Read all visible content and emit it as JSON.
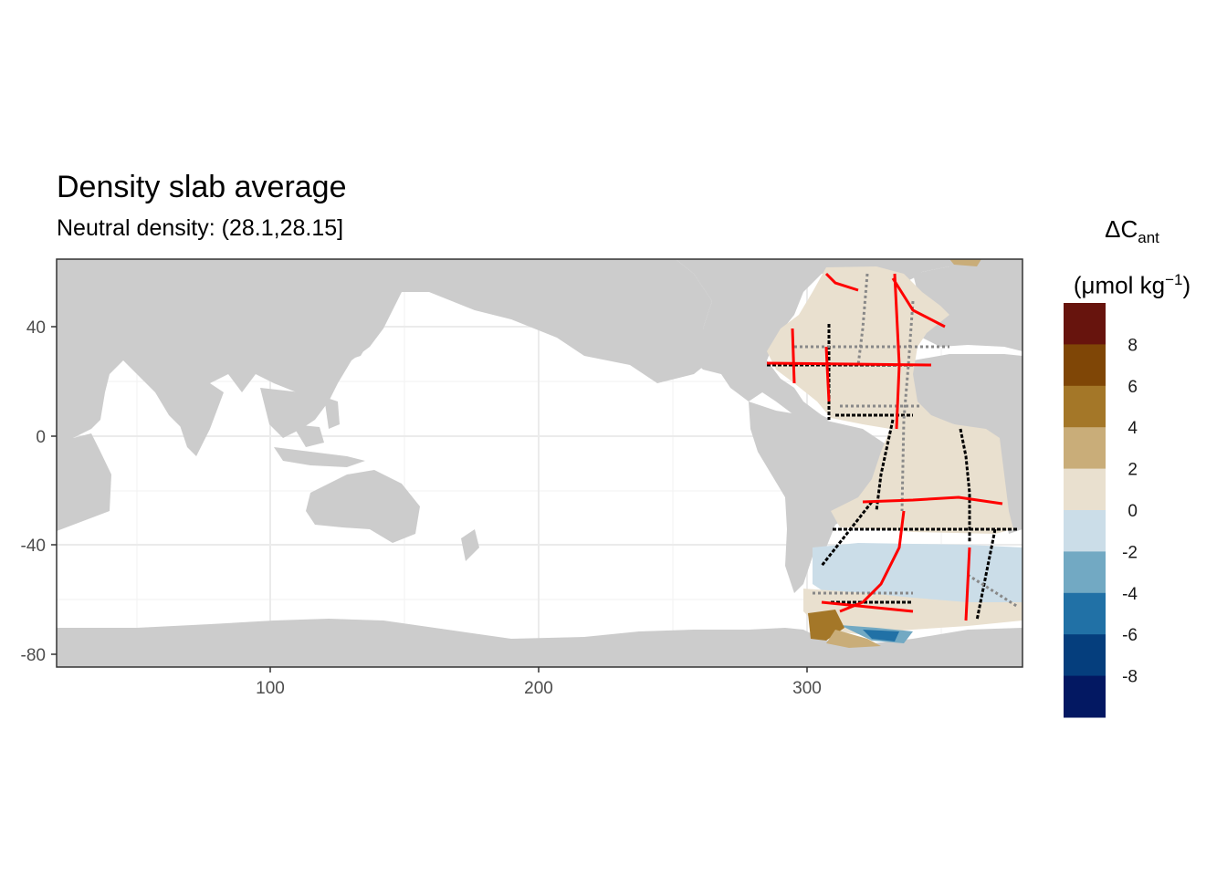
{
  "title": "Density slab average",
  "subtitle": "Neutral density: (28.1,28.15]",
  "legend": {
    "title_symbol": "ΔC",
    "title_subscript": "ant",
    "unit_prefix": "(μmol kg",
    "unit_superscript": "−1",
    "unit_suffix": ")",
    "breaks": [
      "8",
      "6",
      "4",
      "2",
      "0",
      "-2",
      "-4",
      "-6",
      "-8"
    ],
    "colors": [
      "#67140d",
      "#7f4606",
      "#a47728",
      "#c9ad79",
      "#e9e0cf",
      "#cbdde8",
      "#72a9c3",
      "#2171a6",
      "#053e7d",
      "#031862"
    ]
  },
  "chart_data": {
    "type": "map",
    "title": "Density slab average",
    "subtitle": "Neutral density: (28.1,28.15]",
    "xlim": [
      20,
      380
    ],
    "ylim": [
      -85,
      65
    ],
    "x_ticks": [
      100,
      200,
      300
    ],
    "y_ticks": [
      40,
      0,
      -40,
      -80
    ],
    "grid": true,
    "legend_position": "right",
    "color_scale": {
      "variable": "ΔCant",
      "unit": "μmol kg−1",
      "bins": [
        {
          "range": [
            8,
            10
          ],
          "color": "#67140d"
        },
        {
          "range": [
            6,
            8
          ],
          "color": "#7f4606"
        },
        {
          "range": [
            4,
            6
          ],
          "color": "#a47728"
        },
        {
          "range": [
            2,
            4
          ],
          "color": "#c9ad79"
        },
        {
          "range": [
            0,
            2
          ],
          "color": "#e9e0cf"
        },
        {
          "range": [
            -2,
            0
          ],
          "color": "#cbdde8"
        },
        {
          "range": [
            -4,
            -2
          ],
          "color": "#72a9c3"
        },
        {
          "range": [
            -6,
            -4
          ],
          "color": "#2171a6"
        },
        {
          "range": [
            -8,
            -6
          ],
          "color": "#053e7d"
        },
        {
          "range": [
            -10,
            -8
          ],
          "color": "#031862"
        }
      ]
    },
    "land_color": "#cccccc",
    "data_region": "Atlantic and Southern Ocean (approx. lon 282–380, lat -78 to 62)"
  }
}
